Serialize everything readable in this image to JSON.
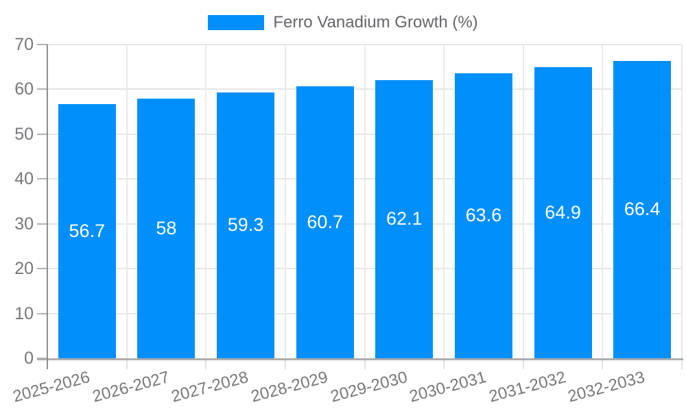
{
  "legend": {
    "label": "Ferro Vanadium Growth (%)",
    "swatch_color": "#008FFB"
  },
  "chart_data": {
    "type": "bar",
    "title": "Ferro Vanadium Growth (%)",
    "categories": [
      "2025-2026",
      "2026-2027",
      "2027-2028",
      "2028-2029",
      "2029-2030",
      "2030-2031",
      "2031-2032",
      "2032-2033"
    ],
    "values": [
      56.7,
      58,
      59.3,
      60.7,
      62.1,
      63.6,
      64.9,
      66.4
    ],
    "value_labels": [
      "56.7",
      "58",
      "59.3",
      "60.7",
      "62.1",
      "63.6",
      "64.9",
      "66.4"
    ],
    "xlabel": "",
    "ylabel": "",
    "ylim": [
      0,
      70
    ],
    "yticks": [
      0,
      10,
      20,
      30,
      40,
      50,
      60,
      70
    ],
    "grid": true,
    "legend_position": "top",
    "bar_color": "#008FFB",
    "data_label_color": "#ffffff",
    "x_label_rotation_deg": -15
  }
}
